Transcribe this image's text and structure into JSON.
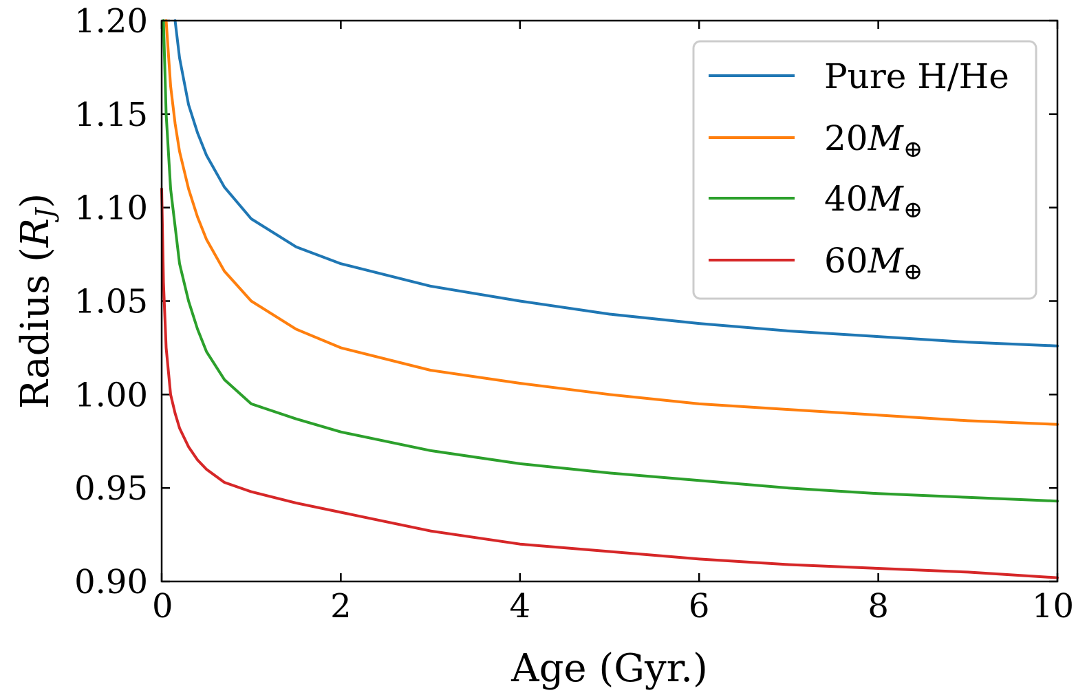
{
  "chart_data": {
    "type": "line",
    "title": "",
    "xlabel": "Age (Gyr.)",
    "ylabel": {
      "prefix": "Radius (",
      "var": "R",
      "sub": "J",
      "suffix": ")"
    },
    "xlim": [
      0,
      10
    ],
    "ylim": [
      0.9,
      1.2
    ],
    "xticks": [
      0,
      2,
      4,
      6,
      8,
      10
    ],
    "xtick_labels": [
      "0",
      "2",
      "4",
      "6",
      "8",
      "10"
    ],
    "yticks": [
      0.9,
      0.95,
      1.0,
      1.05,
      1.1,
      1.15,
      1.2
    ],
    "ytick_labels": [
      "0.90",
      "0.95",
      "1.00",
      "1.05",
      "1.10",
      "1.15",
      "1.20"
    ],
    "grid": false,
    "legend_position": "top-right",
    "series": [
      {
        "name": "Pure H/He",
        "num": "",
        "color": "#1f77b4",
        "x": [
          0.15,
          0.2,
          0.3,
          0.4,
          0.5,
          0.7,
          1.0,
          1.5,
          2.0,
          3.0,
          4.0,
          5.0,
          6.0,
          7.0,
          8.0,
          9.0,
          10.0
        ],
        "y": [
          1.2,
          1.18,
          1.155,
          1.14,
          1.128,
          1.111,
          1.094,
          1.079,
          1.07,
          1.058,
          1.05,
          1.043,
          1.038,
          1.034,
          1.031,
          1.028,
          1.026
        ]
      },
      {
        "name": "20M⊕",
        "num": "20",
        "color": "#ff7f0e",
        "x": [
          0.05,
          0.1,
          0.15,
          0.2,
          0.3,
          0.4,
          0.5,
          0.7,
          1.0,
          1.5,
          2.0,
          3.0,
          4.0,
          5.0,
          6.0,
          7.0,
          8.0,
          9.0,
          10.0
        ],
        "y": [
          1.2,
          1.165,
          1.145,
          1.13,
          1.11,
          1.095,
          1.083,
          1.066,
          1.05,
          1.035,
          1.025,
          1.013,
          1.006,
          1.0,
          0.995,
          0.992,
          0.989,
          0.986,
          0.984
        ]
      },
      {
        "name": "40M⊕",
        "num": "40",
        "color": "#2ca02c",
        "x": [
          0.02,
          0.05,
          0.1,
          0.15,
          0.2,
          0.3,
          0.4,
          0.5,
          0.7,
          1.0,
          1.5,
          2.0,
          3.0,
          4.0,
          5.0,
          6.0,
          7.0,
          8.0,
          9.0,
          10.0
        ],
        "y": [
          1.2,
          1.15,
          1.11,
          1.09,
          1.07,
          1.05,
          1.035,
          1.023,
          1.008,
          0.995,
          0.987,
          0.98,
          0.97,
          0.963,
          0.958,
          0.954,
          0.95,
          0.947,
          0.945,
          0.943
        ]
      },
      {
        "name": "60M⊕",
        "num": "60",
        "color": "#d62728",
        "x": [
          0.0,
          0.02,
          0.05,
          0.1,
          0.15,
          0.2,
          0.3,
          0.4,
          0.5,
          0.7,
          1.0,
          1.5,
          2.0,
          3.0,
          4.0,
          5.0,
          6.0,
          7.0,
          8.0,
          9.0,
          10.0
        ],
        "y": [
          1.11,
          1.06,
          1.025,
          1.0,
          0.99,
          0.982,
          0.972,
          0.965,
          0.96,
          0.953,
          0.948,
          0.942,
          0.937,
          0.927,
          0.92,
          0.916,
          0.912,
          0.909,
          0.907,
          0.905,
          0.902
        ]
      }
    ]
  }
}
